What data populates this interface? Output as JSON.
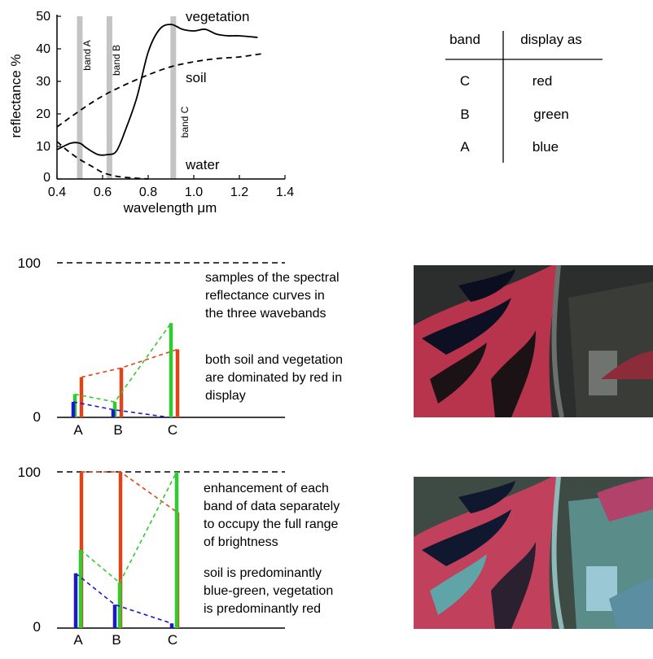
{
  "spectral_chart": {
    "y_ticks": [
      "50",
      "40",
      "30",
      "20",
      "10",
      "0"
    ],
    "x_ticks": [
      "0.4",
      "0.6",
      "0.8",
      "1.0",
      "1.2",
      "1.4"
    ],
    "ylabel": "reflectance %",
    "xlabel": "wavelength μm",
    "band_labels": [
      "band A",
      "band B",
      "band C"
    ],
    "curve_labels": {
      "vegetation": "vegetation",
      "soil": "soil",
      "water": "water"
    }
  },
  "band_table": {
    "headers": [
      "band",
      "display as"
    ],
    "rows": [
      {
        "band": "C",
        "display": "red"
      },
      {
        "band": "B",
        "display": "green"
      },
      {
        "band": "A",
        "display": "blue"
      }
    ]
  },
  "panel_top": {
    "y_top": "100",
    "y_bottom": "0",
    "x_labels": [
      "A",
      "B",
      "C"
    ],
    "text1": [
      "samples of the spectral",
      "reflectance curves in",
      "the three wavebands"
    ],
    "text2": [
      "both soil and vegetation",
      "are dominated by red in",
      "display"
    ]
  },
  "panel_bottom": {
    "y_top": "100",
    "y_bottom": "0",
    "x_labels": [
      "A",
      "B",
      "C"
    ],
    "text1": [
      "enhancement of each",
      "band of data separately",
      "to occupy the full range",
      "of brightness"
    ],
    "text2": [
      "soil is predominantly",
      "blue-green, vegetation",
      "is predominantly red"
    ]
  },
  "chart_data": [
    {
      "type": "line",
      "xlabel": "wavelength μm",
      "ylabel": "reflectance %",
      "xlim": [
        0.4,
        1.4
      ],
      "ylim": [
        0,
        50
      ],
      "grid": false,
      "series": [
        {
          "name": "vegetation",
          "x": [
            0.4,
            0.46,
            0.5,
            0.53,
            0.58,
            0.62,
            0.66,
            0.7,
            0.75,
            0.8,
            0.85,
            0.9,
            0.95,
            1.0,
            1.05,
            1.1,
            1.15,
            1.2,
            1.28
          ],
          "values": [
            9,
            11,
            11,
            9.5,
            7.5,
            7.5,
            8.5,
            15,
            25,
            39,
            46,
            47.5,
            46,
            45.5,
            46,
            44.5,
            44,
            44,
            43.5
          ]
        },
        {
          "name": "soil",
          "x": [
            0.4,
            0.5,
            0.6,
            0.7,
            0.8,
            0.9,
            1.0,
            1.1,
            1.2,
            1.3
          ],
          "values": [
            16,
            21,
            25.5,
            29,
            32,
            34.5,
            36,
            37,
            37.5,
            38.5
          ]
        },
        {
          "name": "water",
          "x": [
            0.4,
            0.45,
            0.5,
            0.55,
            0.6,
            0.65,
            0.7,
            0.8
          ],
          "values": [
            11.5,
            8.5,
            6,
            4,
            2,
            1,
            0.5,
            0
          ]
        }
      ],
      "bands": [
        {
          "name": "band A",
          "center": 0.5
        },
        {
          "name": "band B",
          "center": 0.63
        },
        {
          "name": "band C",
          "center": 0.91
        }
      ]
    },
    {
      "type": "bar",
      "title": "samples of the spectral reflectance curves in the three wavebands",
      "categories": [
        "A",
        "B",
        "C"
      ],
      "ylim": [
        0,
        100
      ],
      "series": [
        {
          "name": "soil",
          "color": "#e0441b",
          "values": [
            26,
            32,
            44
          ]
        },
        {
          "name": "vegetation",
          "color": "#2ecc2e",
          "values": [
            15,
            10,
            61
          ]
        },
        {
          "name": "water",
          "color": "#1a1acc",
          "values": [
            10,
            5,
            0
          ]
        }
      ]
    },
    {
      "type": "bar",
      "title": "enhancement of each band of data separately to occupy the full range of brightness",
      "categories": [
        "A",
        "B",
        "C"
      ],
      "ylim": [
        0,
        100
      ],
      "series": [
        {
          "name": "soil",
          "color": "#e0441b",
          "values": [
            100,
            100,
            74
          ]
        },
        {
          "name": "vegetation",
          "color": "#2ecc2e",
          "values": [
            50,
            29,
            100
          ]
        },
        {
          "name": "water",
          "color": "#1a1acc",
          "values": [
            35,
            15,
            3
          ]
        }
      ]
    }
  ]
}
